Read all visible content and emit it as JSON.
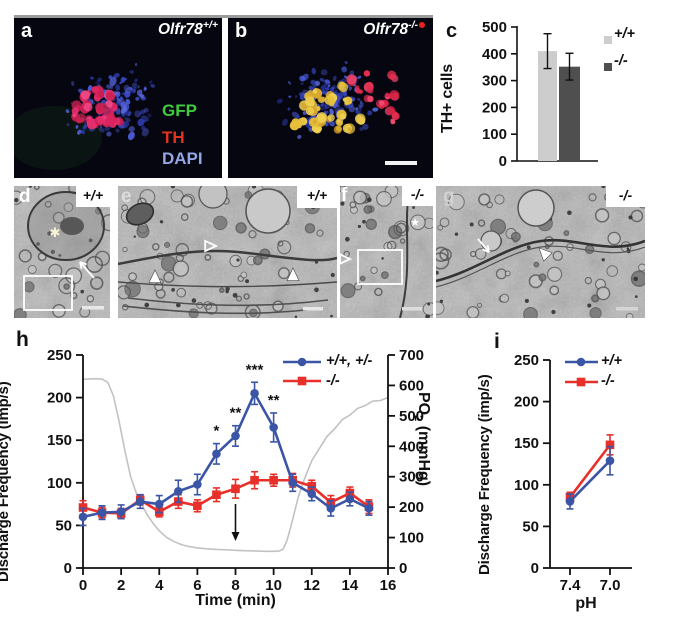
{
  "panels": {
    "a": {
      "label": "a",
      "gene": "Olfr78",
      "sup": "+/+",
      "channels": [
        {
          "text": "GFP",
          "color": "#3ecb3e"
        },
        {
          "text": "TH",
          "color": "#e23222"
        },
        {
          "text": "DAPI",
          "color": "#93a7e4"
        }
      ]
    },
    "b": {
      "label": "b",
      "gene": "Olfr78",
      "sup": "-/-",
      "marker_dot_color": "#e8231e"
    },
    "c": {
      "label": "c"
    },
    "d": {
      "label": "d",
      "genotype": "+/+"
    },
    "e": {
      "label": "e",
      "genotype": "+/+"
    },
    "f": {
      "label": "f",
      "genotype": "-/-"
    },
    "g": {
      "label": "g",
      "genotype": "-/-"
    },
    "h": {
      "label": "h"
    },
    "i": {
      "label": "i"
    }
  },
  "chart_data": [
    {
      "panel": "c",
      "type": "bar",
      "ylabel": "TH+ cells",
      "ylim": [
        0,
        500
      ],
      "yticks": [
        0,
        100,
        200,
        300,
        400,
        500
      ],
      "categories": [
        "+/+",
        "-/-"
      ],
      "values": [
        410,
        352
      ],
      "errors": [
        65,
        50
      ],
      "bar_colors": [
        "#cdcdcd",
        "#4f4f4f"
      ],
      "legend": [
        {
          "label": "+/+",
          "color": "#cdcdcd"
        },
        {
          "label": "-/-",
          "color": "#4f4f4f"
        }
      ]
    },
    {
      "panel": "h",
      "type": "line",
      "xlabel": "Time (min)",
      "ylabel_left": "Discharge Frequency (imp/s)",
      "ylabel_right_pre": "PO",
      "ylabel_right_sub": "2",
      "ylabel_right_post": " (mmHg)",
      "xlim": [
        0,
        16
      ],
      "xticks": [
        0,
        2,
        4,
        6,
        8,
        10,
        12,
        14,
        16
      ],
      "ylim_left": [
        0,
        250
      ],
      "yticks_left": [
        0,
        50,
        100,
        150,
        200,
        250
      ],
      "ylim_right": [
        0,
        700
      ],
      "yticks_right": [
        0,
        100,
        200,
        300,
        400,
        500,
        600,
        700
      ],
      "series": [
        {
          "name": "+/+, +/-",
          "color": "#3b55a6",
          "marker": "circle",
          "x": [
            0,
            1,
            2,
            3,
            4,
            5,
            6,
            7,
            8,
            9,
            10,
            11,
            12,
            13,
            14,
            15
          ],
          "y": [
            60,
            65,
            66,
            78,
            75,
            90,
            98,
            134,
            155,
            205,
            165,
            100,
            87,
            70,
            81,
            70
          ],
          "err": [
            10,
            8,
            8,
            8,
            10,
            13,
            12,
            12,
            12,
            13,
            17,
            10,
            8,
            9,
            8,
            8
          ]
        },
        {
          "name": "-/-",
          "color": "#e8302a",
          "marker": "square",
          "x": [
            0,
            1,
            2,
            3,
            4,
            5,
            6,
            7,
            8,
            9,
            10,
            11,
            12,
            13,
            14,
            15
          ],
          "y": [
            71,
            65,
            64,
            80,
            66,
            78,
            73,
            86,
            93,
            103,
            103,
            103,
            96,
            77,
            88,
            72
          ],
          "err": [
            8,
            6,
            6,
            6,
            6,
            8,
            7,
            8,
            11,
            10,
            7,
            8,
            7,
            8,
            7,
            8
          ]
        }
      ],
      "po2_trace": {
        "color": "#c2c2c2",
        "points": [
          [
            0,
            620
          ],
          [
            0.6,
            622
          ],
          [
            1,
            621
          ],
          [
            1.3,
            610
          ],
          [
            1.6,
            565
          ],
          [
            1.9,
            480
          ],
          [
            2.2,
            385
          ],
          [
            2.5,
            300
          ],
          [
            2.8,
            245
          ],
          [
            3.1,
            205
          ],
          [
            3.4,
            172
          ],
          [
            3.7,
            145
          ],
          [
            4,
            122
          ],
          [
            4.4,
            100
          ],
          [
            4.8,
            86
          ],
          [
            5.2,
            76
          ],
          [
            5.6,
            70
          ],
          [
            6,
            66
          ],
          [
            6.5,
            63
          ],
          [
            7,
            61
          ],
          [
            7.5,
            60
          ],
          [
            8,
            58
          ],
          [
            8.5,
            57
          ],
          [
            9,
            56
          ],
          [
            9.5,
            55
          ],
          [
            10,
            55
          ],
          [
            10.3,
            56
          ],
          [
            10.5,
            62
          ],
          [
            10.7,
            90
          ],
          [
            10.9,
            135
          ],
          [
            11.1,
            185
          ],
          [
            11.3,
            235
          ],
          [
            11.6,
            290
          ],
          [
            12,
            350
          ],
          [
            12.4,
            395
          ],
          [
            12.8,
            430
          ],
          [
            13.2,
            460
          ],
          [
            13.6,
            485
          ],
          [
            14,
            505
          ],
          [
            14.4,
            522
          ],
          [
            14.8,
            536
          ],
          [
            15.2,
            546
          ],
          [
            15.6,
            553
          ],
          [
            16,
            558
          ]
        ]
      },
      "significance": [
        {
          "x": 7,
          "label": "*"
        },
        {
          "x": 8,
          "label": "**"
        },
        {
          "x": 9,
          "label": "***"
        },
        {
          "x": 10,
          "label": "**"
        }
      ],
      "stimulus_arrow_x": 8
    },
    {
      "panel": "i",
      "type": "line",
      "xlabel": "pH",
      "ylabel": "Discharge Frequency (imp/s)",
      "categories": [
        "7.4",
        "7.0"
      ],
      "ylim": [
        0,
        250
      ],
      "yticks": [
        0,
        50,
        100,
        150,
        200,
        250
      ],
      "series": [
        {
          "name": "+/+",
          "color": "#3b55a6",
          "marker": "circle",
          "y": [
            80,
            129
          ],
          "err": [
            9,
            17
          ]
        },
        {
          "name": "-/-",
          "color": "#e8302a",
          "marker": "square",
          "y": [
            85,
            148
          ],
          "err": [
            6,
            12
          ]
        }
      ]
    }
  ]
}
